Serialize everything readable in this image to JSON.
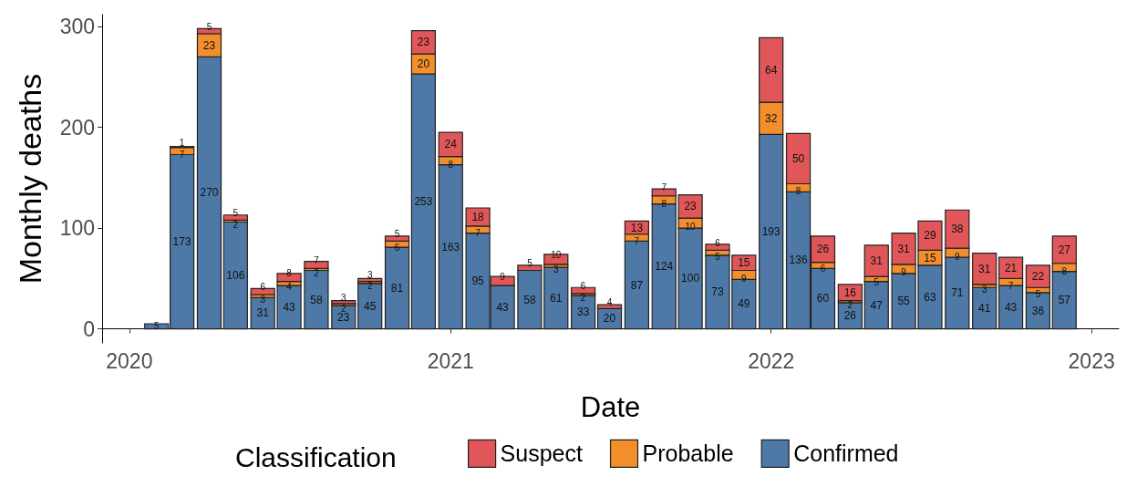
{
  "chart_data": {
    "type": "bar",
    "stacked": true,
    "xlabel": "Date",
    "ylabel": "Monthly deaths",
    "legend_title": "Classification",
    "legend": "bottom",
    "grid": false,
    "data_labels": true,
    "x": [
      "2020-02",
      "2020-03",
      "2020-04",
      "2020-05",
      "2020-06",
      "2020-07",
      "2020-08",
      "2020-09",
      "2020-10",
      "2020-11",
      "2020-12",
      "2021-01",
      "2021-02",
      "2021-03",
      "2021-04",
      "2021-05",
      "2021-06",
      "2021-07",
      "2021-08",
      "2021-09",
      "2021-10",
      "2021-11",
      "2021-12",
      "2022-01",
      "2022-02",
      "2022-03",
      "2022-04",
      "2022-05",
      "2022-06",
      "2022-07",
      "2022-08",
      "2022-09",
      "2022-10",
      "2022-11",
      "2022-12"
    ],
    "xlim": [
      "2019-12",
      "2023-02"
    ],
    "xticks": [
      "2020",
      "2021",
      "2022",
      "2023"
    ],
    "ylim": [
      -14,
      312
    ],
    "yticks": [
      0,
      100,
      200,
      300
    ],
    "series": [
      {
        "name": "Confirmed",
        "color": "#4e79a7",
        "values": [
          5,
          173,
          270,
          106,
          31,
          43,
          58,
          23,
          45,
          81,
          253,
          163,
          95,
          43,
          58,
          61,
          33,
          20,
          87,
          124,
          100,
          73,
          49,
          193,
          136,
          60,
          26,
          47,
          55,
          63,
          71,
          41,
          43,
          36,
          57
        ]
      },
      {
        "name": "Probable",
        "color": "#f28e2b",
        "values": [
          null,
          7,
          23,
          2,
          3,
          4,
          2,
          2,
          2,
          6,
          20,
          8,
          7,
          null,
          null,
          3,
          2,
          null,
          7,
          8,
          10,
          5,
          9,
          32,
          8,
          6,
          2,
          5,
          9,
          15,
          9,
          3,
          7,
          5,
          8
        ]
      },
      {
        "name": "Suspect",
        "color": "#e15759",
        "values": [
          null,
          1,
          5,
          5,
          6,
          8,
          7,
          3,
          3,
          5,
          23,
          24,
          18,
          9,
          5,
          10,
          6,
          4,
          13,
          7,
          23,
          6,
          15,
          64,
          50,
          26,
          16,
          31,
          31,
          29,
          38,
          31,
          21,
          22,
          27
        ]
      }
    ]
  }
}
